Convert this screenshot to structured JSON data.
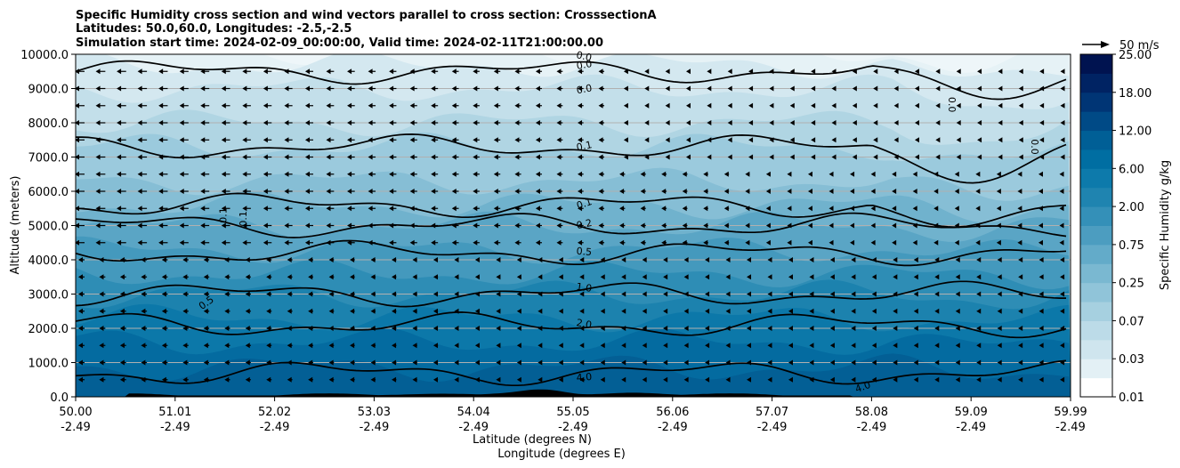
{
  "chart_data": {
    "type": "heatmap",
    "title_lines": [
      "Specific Humidity cross section and wind vectors parallel to cross section: CrosssectionA",
      "Latitudes: 50.0,60.0, Longitudes: -2.5,-2.5",
      "Simulation start time: 2024-02-09_00:00:00, Valid time: 2024-02-11T21:00:00.00"
    ],
    "ylabel": "Altitude (meters)",
    "xlabel_lines": [
      "Latitude (degrees N)",
      "Longitude (degrees E)"
    ],
    "ylim": [
      0,
      10000
    ],
    "y_ticks": [
      "0.0",
      "1000.0",
      "2000.0",
      "3000.0",
      "4000.0",
      "5000.0",
      "6000.0",
      "7000.0",
      "8000.0",
      "9000.0",
      "10000.0"
    ],
    "x_ticks_lat": [
      "50.00",
      "51.01",
      "52.02",
      "53.03",
      "54.04",
      "55.05",
      "56.06",
      "57.07",
      "58.08",
      "59.09",
      "59.99"
    ],
    "x_ticks_lon": [
      "-2.49",
      "-2.49",
      "-2.49",
      "-2.49",
      "-2.49",
      "-2.49",
      "-2.49",
      "-2.49",
      "-2.49",
      "-2.49",
      "-2.49"
    ],
    "grid": "horizontal",
    "colorbar": {
      "label": "Specific Humidity g/kg",
      "tick_labels": [
        "0.01",
        "0.03",
        "0.07",
        "0.25",
        "0.75",
        "2.00",
        "6.00",
        "12.00",
        "18.00",
        "25.00"
      ],
      "colors": [
        "#ffffff",
        "#e3f0f5",
        "#cfe5ee",
        "#bcdbe8",
        "#a6d0e0",
        "#90c4d9",
        "#7ab8d1",
        "#63abc9",
        "#4c9dc0",
        "#3490b8",
        "#1f84b0",
        "#0d7aab",
        "#006ea2",
        "#005f96",
        "#004a86",
        "#003575",
        "#002363",
        "#001350"
      ]
    },
    "quiver_key": {
      "label": "50 m/s"
    },
    "contour_levels": [
      {
        "label": "0.0",
        "altitude_m": 9500
      },
      {
        "label": "0.1",
        "altitude_m": 7300
      },
      {
        "label": "0.1",
        "altitude_m": 5600
      },
      {
        "label": "0.2",
        "altitude_m": 5000
      },
      {
        "label": "0.5",
        "altitude_m": 4200
      },
      {
        "label": "1.0",
        "altitude_m": 3000
      },
      {
        "label": "2.0",
        "altitude_m": 2100
      },
      {
        "label": "4.0",
        "altitude_m": 700
      }
    ],
    "contour_text": [
      {
        "text": "0.0",
        "x_frac": 0.495,
        "alt": 9950,
        "rot": 12
      },
      {
        "text": "0.0",
        "x_frac": 0.495,
        "alt": 9700,
        "rot": -10
      },
      {
        "text": "0.0",
        "x_frac": 0.495,
        "alt": 8990,
        "rot": -10
      },
      {
        "text": "0.1",
        "x_frac": 0.495,
        "alt": 7330,
        "rot": -12
      },
      {
        "text": "0.1",
        "x_frac": 0.495,
        "alt": 5650,
        "rot": -18
      },
      {
        "text": "0.2",
        "x_frac": 0.495,
        "alt": 5050,
        "rot": -12
      },
      {
        "text": "0.5",
        "x_frac": 0.495,
        "alt": 4250,
        "rot": 5
      },
      {
        "text": "1.0",
        "x_frac": 0.495,
        "alt": 3200,
        "rot": 8
      },
      {
        "text": "2.0",
        "x_frac": 0.495,
        "alt": 2140,
        "rot": 10
      },
      {
        "text": "4.0",
        "x_frac": 0.495,
        "alt": 580,
        "rot": -5
      },
      {
        "text": "4.0",
        "x_frac": 0.775,
        "alt": 300,
        "rot": -20
      },
      {
        "text": "0.5",
        "x_frac": 0.115,
        "alt": 2750,
        "rot": -35
      },
      {
        "text": "0.1",
        "x_frac": 0.132,
        "alt": 5300,
        "rot": -90
      },
      {
        "text": "0.1",
        "x_frac": 0.152,
        "alt": 5200,
        "rot": -90
      },
      {
        "text": "0.0",
        "x_frac": 0.865,
        "alt": 8530,
        "rot": 90
      },
      {
        "text": "0.0",
        "x_frac": 0.948,
        "alt": 7300,
        "rot": 90
      }
    ]
  }
}
